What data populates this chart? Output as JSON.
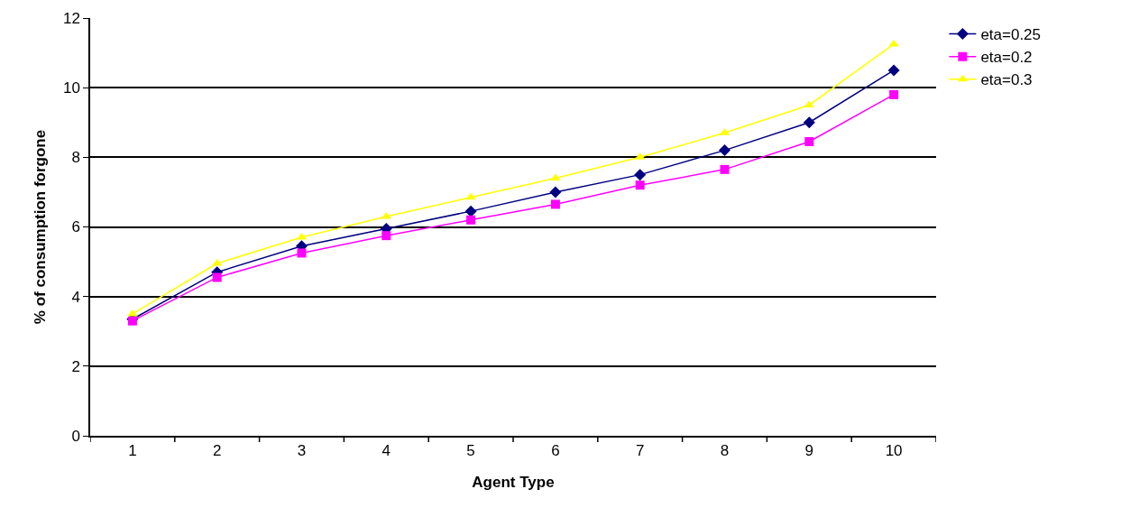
{
  "chart_data": {
    "type": "line",
    "xlabel": "Agent Type",
    "ylabel": "% of consumption forgone",
    "categories": [
      "1",
      "2",
      "3",
      "4",
      "5",
      "6",
      "7",
      "8",
      "9",
      "10"
    ],
    "series": [
      {
        "name": "eta=0.25",
        "color": "#000080",
        "marker": "diamond",
        "values": [
          3.35,
          4.7,
          5.45,
          5.95,
          6.45,
          7.0,
          7.5,
          8.2,
          9.0,
          10.5
        ]
      },
      {
        "name": "eta=0.2",
        "color": "#ff00ff",
        "marker": "square",
        "values": [
          3.3,
          4.55,
          5.25,
          5.75,
          6.2,
          6.65,
          7.2,
          7.65,
          8.45,
          9.8
        ]
      },
      {
        "name": "eta=0.3",
        "color": "#ffff00",
        "marker": "triangle",
        "values": [
          3.5,
          4.95,
          5.7,
          6.3,
          6.85,
          7.4,
          8.0,
          8.7,
          9.5,
          11.25
        ]
      }
    ],
    "ylim": [
      0,
      12
    ],
    "yticks": [
      0,
      2,
      4,
      6,
      8,
      10,
      12
    ],
    "grid": "y",
    "legend": "right"
  }
}
